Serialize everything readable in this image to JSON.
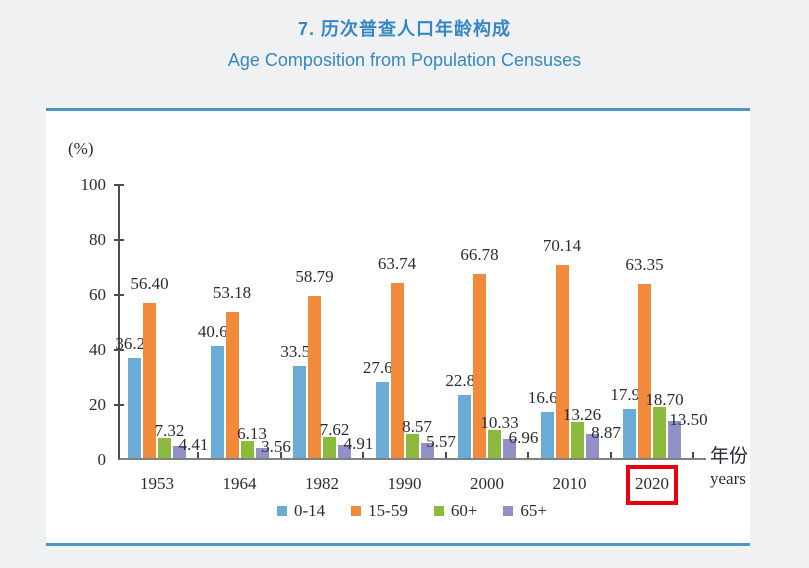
{
  "page": {
    "title_zh": "7. 历次普查人口年龄构成",
    "title_en": "Age Composition from Population Censuses",
    "title_color": "#3787c4",
    "card_border_color": "#4f96c8",
    "background_color": "#eff1f3"
  },
  "chart_data": {
    "type": "bar",
    "title": "7. 历次普查人口年龄构成 / Age Composition from Population Censuses",
    "unit_label": "(%)",
    "xlabel_zh": "年份",
    "xlabel_en": "years",
    "ylabel": "",
    "ylim": [
      0,
      100
    ],
    "ytick_step": 20,
    "grid": false,
    "legend_position": "bottom",
    "categories": [
      "1953",
      "1964",
      "1982",
      "1990",
      "2000",
      "2010",
      "2020"
    ],
    "series": [
      {
        "name": "0-14",
        "color": "#6aacd6",
        "values": [
          36.28,
          40.69,
          33.59,
          27.69,
          22.89,
          16.6,
          17.95
        ]
      },
      {
        "name": "15-59",
        "color": "#f18a3b",
        "values": [
          56.4,
          53.18,
          58.79,
          63.74,
          66.78,
          70.14,
          63.35
        ]
      },
      {
        "name": "60+",
        "color": "#8cba3d",
        "values": [
          7.32,
          6.13,
          7.62,
          8.57,
          10.33,
          13.26,
          18.7
        ]
      },
      {
        "name": "65+",
        "color": "#9191c8",
        "values": [
          4.41,
          3.56,
          4.91,
          5.57,
          6.96,
          8.87,
          13.5
        ]
      }
    ],
    "highlighted_category": "2020",
    "highlight_color": "#e8000d",
    "value_label_decimals": 2
  }
}
